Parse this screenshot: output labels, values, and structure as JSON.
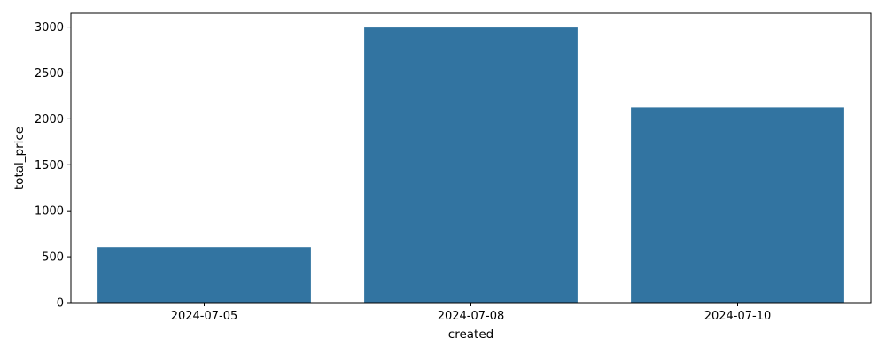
{
  "chart_data": {
    "type": "bar",
    "categories": [
      "2024-07-05",
      "2024-07-08",
      "2024-07-10"
    ],
    "values": [
      605,
      2995,
      2125
    ],
    "title": "",
    "xlabel": "created",
    "ylabel": "total_price",
    "ylim": [
      0,
      3150
    ],
    "yticks": [
      0,
      500,
      1000,
      1500,
      2000,
      2500,
      3000
    ],
    "grid": false,
    "bar_color": "#3274a1"
  }
}
